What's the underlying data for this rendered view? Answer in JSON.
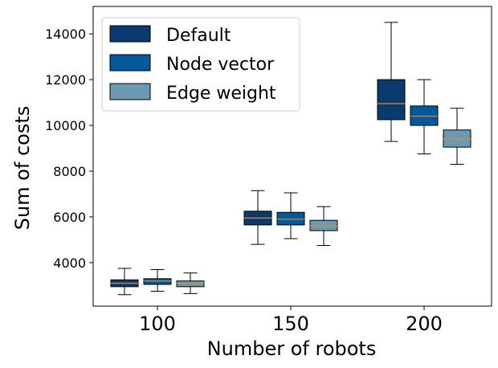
{
  "chart_data": {
    "type": "boxplot",
    "xlabel": "Number of robots",
    "ylabel": "Sum of costs",
    "categories": [
      "100",
      "150",
      "200"
    ],
    "ylim": [
      2100,
      15200
    ],
    "yticks": [
      4000,
      6000,
      8000,
      10000,
      12000,
      14000
    ],
    "grid": false,
    "legend_position": "top-left",
    "series": [
      {
        "name": "Default",
        "color": "#0a3a6e",
        "boxes": [
          {
            "whisker_low": 2600,
            "q1": 2950,
            "median": 3100,
            "q3": 3250,
            "whisker_high": 3750
          },
          {
            "whisker_low": 4800,
            "q1": 5650,
            "median": 5950,
            "q3": 6250,
            "whisker_high": 7150
          },
          {
            "whisker_low": 9300,
            "q1": 10250,
            "median": 10950,
            "q3": 12000,
            "whisker_high": 14500
          }
        ]
      },
      {
        "name": "Node vector",
        "color": "#04599c",
        "boxes": [
          {
            "whisker_low": 2750,
            "q1": 3050,
            "median": 3200,
            "q3": 3300,
            "whisker_high": 3700
          },
          {
            "whisker_low": 5050,
            "q1": 5650,
            "median": 5900,
            "q3": 6200,
            "whisker_high": 7050
          },
          {
            "whisker_low": 8750,
            "q1": 10000,
            "median": 10400,
            "q3": 10850,
            "whisker_high": 12000
          }
        ]
      },
      {
        "name": "Edge weight",
        "color": "#6a9ab5",
        "boxes": [
          {
            "whisker_low": 2650,
            "q1": 2950,
            "median": 3100,
            "q3": 3200,
            "whisker_high": 3550
          },
          {
            "whisker_low": 4750,
            "q1": 5400,
            "median": 5600,
            "q3": 5850,
            "whisker_high": 6450
          },
          {
            "whisker_low": 8300,
            "q1": 9050,
            "median": 9400,
            "q3": 9800,
            "whisker_high": 10750
          }
        ]
      }
    ],
    "median_color": "#e08a2c"
  }
}
